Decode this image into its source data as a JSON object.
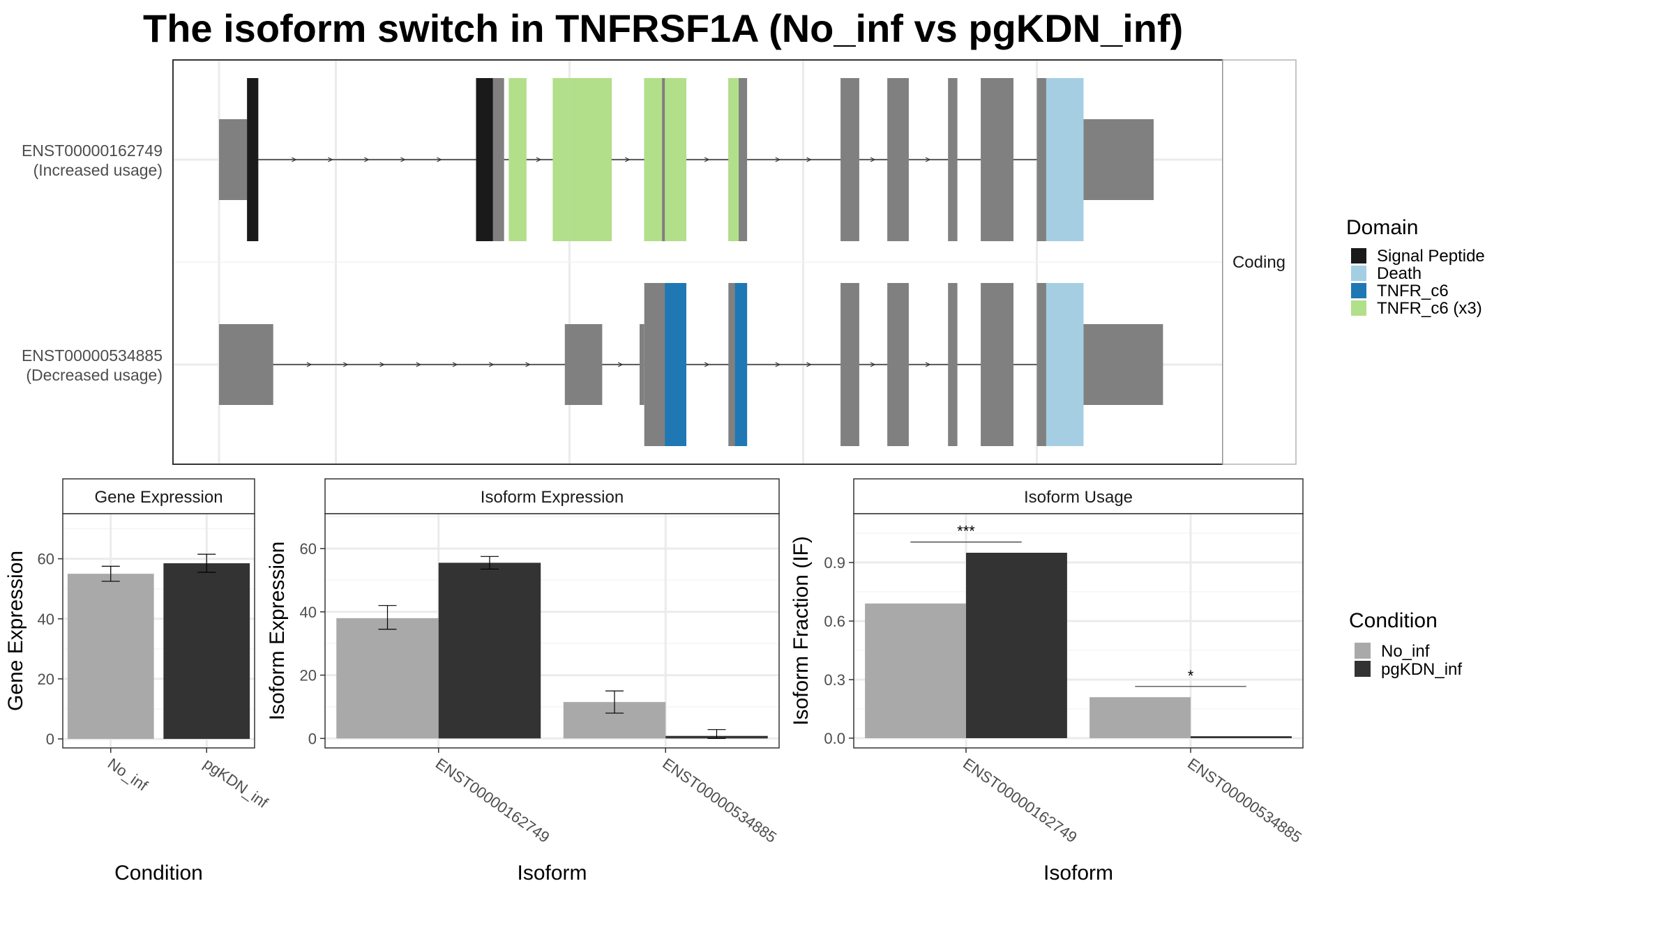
{
  "title": "The isoform switch in TNFRSF1A (No_inf vs pgKDN_inf)",
  "colors": {
    "no_inf": "#a9a9a9",
    "pgkdn_inf": "#333333",
    "exon": "#808080",
    "signal_peptide": "#1a1a1a",
    "death": "#a6cee3",
    "tnfr_c6": "#1f78b4",
    "tnfr_c6_x3": "#b2df8a"
  },
  "chart_data": [
    {
      "type": "gene-structure",
      "strip_label": "Coding",
      "transcripts": [
        {
          "id": "ENST00000162749",
          "label_line1": "ENST00000162749",
          "label_line2": "(Increased usage)",
          "utr5": [
            [
              0.0,
              0.03
            ],
            [
              0.03,
              0.035
            ]
          ],
          "coding_exons": [
            [
              0.03,
              0.042
            ],
            [
              0.275,
              0.305
            ],
            [
              0.38,
              0.42
            ],
            [
              0.455,
              0.5
            ],
            [
              0.545,
              0.565
            ],
            [
              0.665,
              0.685
            ],
            [
              0.715,
              0.738
            ],
            [
              0.78,
              0.79
            ],
            [
              0.815,
              0.85
            ],
            [
              0.875,
              0.92
            ]
          ],
          "utr3": [
            [
              0.92,
              1.0
            ]
          ],
          "domains": [
            {
              "name": "Signal Peptide",
              "ranges": [
                [
                  0.03,
                  0.042
                ],
                [
                  0.275,
                  0.293
                ]
              ]
            },
            {
              "name": "TNFR_c6 (x3)",
              "ranges": [
                [
                  0.31,
                  0.329
                ],
                [
                  0.357,
                  0.38
                ],
                [
                  0.38,
                  0.42
                ],
                [
                  0.455,
                  0.474
                ],
                [
                  0.477,
                  0.5
                ],
                [
                  0.545,
                  0.556
                ]
              ]
            },
            {
              "name": "Death",
              "ranges": [
                [
                  0.885,
                  0.925
                ]
              ]
            }
          ]
        },
        {
          "id": "ENST00000534885",
          "label_line1": "ENST00000534885",
          "label_line2": "(Decreased usage)",
          "utr5": [
            [
              0.0,
              0.058
            ],
            [
              0.37,
              0.41
            ],
            [
              0.45,
              0.455
            ]
          ],
          "coding_exons": [
            [
              0.455,
              0.5
            ],
            [
              0.545,
              0.565
            ],
            [
              0.665,
              0.685
            ],
            [
              0.715,
              0.738
            ],
            [
              0.78,
              0.79
            ],
            [
              0.815,
              0.85
            ],
            [
              0.875,
              0.92
            ]
          ],
          "utr3": [
            [
              0.92,
              1.01
            ]
          ],
          "domains": [
            {
              "name": "TNFR_c6",
              "ranges": [
                [
                  0.477,
                  0.5
                ],
                [
                  0.552,
                  0.565
                ]
              ]
            },
            {
              "name": "Death",
              "ranges": [
                [
                  0.885,
                  0.925
                ]
              ]
            }
          ]
        }
      ],
      "legend_title": "Domain",
      "legend": [
        "Signal Peptide",
        "Death",
        "TNFR_c6",
        "TNFR_c6 (x3)"
      ]
    },
    {
      "type": "bar",
      "title": "Gene Expression",
      "xlabel": "Condition",
      "ylabel": "Gene Expression",
      "categories": [
        "No_inf",
        "pgKDN_inf"
      ],
      "values": [
        55,
        58.5
      ],
      "errors": [
        [
          52.5,
          57.5
        ],
        [
          55.5,
          61.5
        ]
      ],
      "ylim": [
        -3,
        75
      ],
      "yticks": [
        0,
        20,
        40,
        60
      ]
    },
    {
      "type": "bar",
      "title": "Isoform Expression",
      "xlabel": "Isoform",
      "ylabel": "Isoform Expression",
      "categories": [
        "ENST00000162749",
        "ENST00000534885"
      ],
      "series": [
        {
          "name": "No_inf",
          "values": [
            38,
            11.5
          ],
          "errors": [
            [
              34.5,
              42
            ],
            [
              8,
              15
            ]
          ]
        },
        {
          "name": "pgKDN_inf",
          "values": [
            55.5,
            0.8
          ],
          "errors": [
            [
              53.5,
              57.5
            ],
            [
              0,
              2.8
            ]
          ]
        }
      ],
      "ylim": [
        -3,
        71
      ],
      "yticks": [
        0,
        20,
        40,
        60
      ]
    },
    {
      "type": "bar",
      "title": "Isoform Usage",
      "xlabel": "Isoform",
      "ylabel": "Isoform Fraction (IF)",
      "categories": [
        "ENST00000162749",
        "ENST00000534885"
      ],
      "series": [
        {
          "name": "No_inf",
          "values": [
            0.69,
            0.21
          ]
        },
        {
          "name": "pgKDN_inf",
          "values": [
            0.95,
            0.01
          ]
        }
      ],
      "significance": [
        "***",
        "*"
      ],
      "ylim": [
        -0.05,
        1.15
      ],
      "yticks": [
        0.0,
        0.3,
        0.6,
        0.9
      ],
      "ytick_labels": [
        "0.0",
        "0.3",
        "0.6",
        "0.9"
      ]
    }
  ],
  "condition_legend": {
    "title": "Condition",
    "items": [
      "No_inf",
      "pgKDN_inf"
    ]
  }
}
